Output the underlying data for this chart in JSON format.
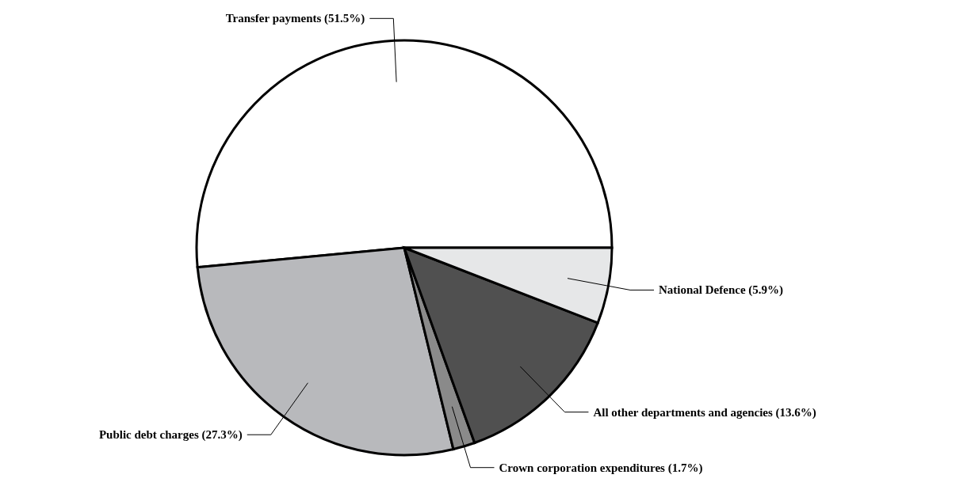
{
  "chart_data": {
    "type": "pie",
    "categories": [
      "Transfer payments",
      "Public debt charges",
      "Crown corporation expenditures",
      "All other departments and agencies",
      "National Defence"
    ],
    "values": [
      51.5,
      27.3,
      1.7,
      13.6,
      5.9
    ],
    "value_labels": [
      "(51.5%)",
      "(27.3%)",
      "(1.7%)",
      "(13.6%)",
      "(5.9%)"
    ],
    "colors": [
      "#ffffff",
      "#b8b9bc",
      "#8a8a8a",
      "#505050",
      "#e6e7e8"
    ],
    "legend": false
  }
}
